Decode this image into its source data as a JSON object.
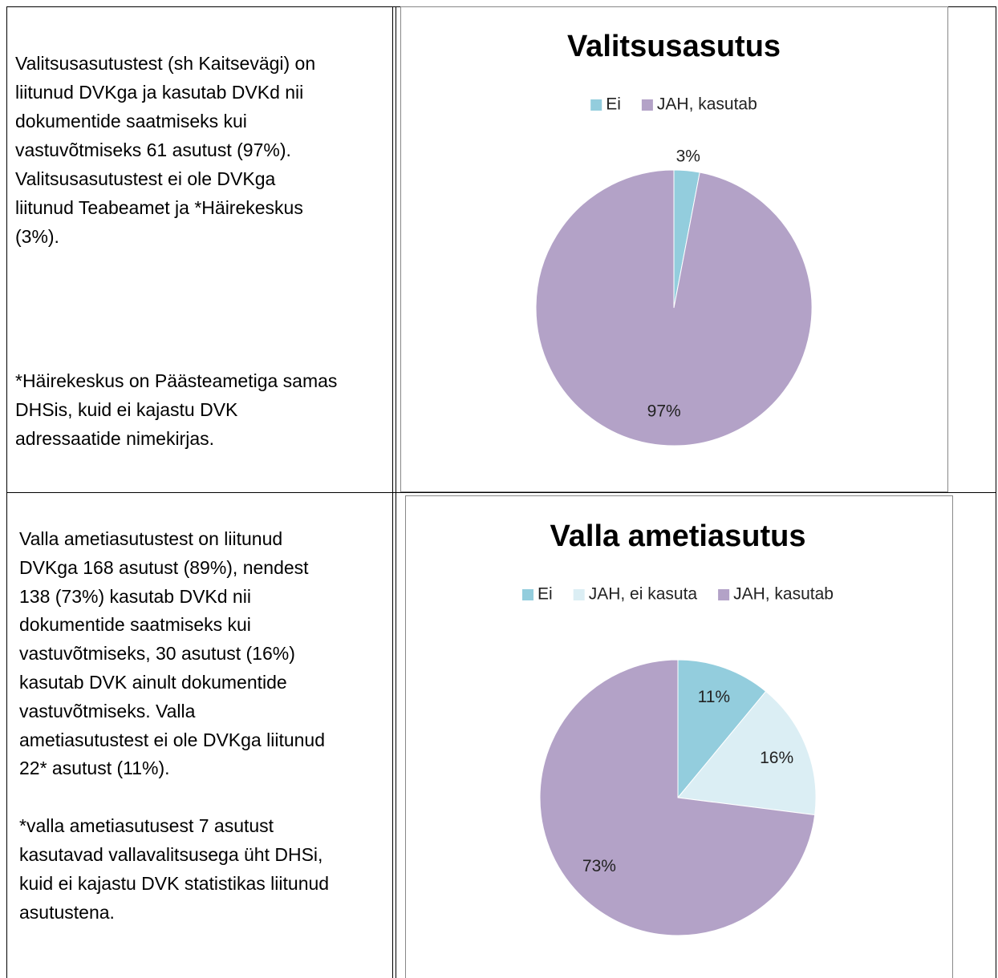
{
  "table": {
    "rows": [
      {
        "text": [
          [
            "Valitsusasutustest (sh Kaitsevägi) on",
            "liitunud DVKga ja kasutab DVKd nii",
            "dokumentide saatmiseks kui",
            "vastuvõtmiseks 61 asutust (97%).",
            "Valitsusasutustest ei ole DVKga",
            "liitunud Teabeamet ja *Häirekeskus",
            "(3%)."
          ],
          [
            "*Häirekeskus on Päästeametiga samas",
            "DHSis, kuid ei kajastu DVK",
            "adressaatide nimekirjas."
          ]
        ]
      },
      {
        "text": [
          [
            "Valla ametiasutustest on liitunud",
            "DVKga 168 asutust (89%), nendest",
            "138 (73%) kasutab DVKd nii",
            "dokumentide saatmiseks kui",
            "vastuvõtmiseks, 30 asutust (16%)",
            "kasutab DVK ainult dokumentide",
            "vastuvõtmiseks. Valla",
            "ametiasutustest ei ole DVKga liitunud",
            "22* asutust (11%)."
          ],
          [
            "*valla ametiasutusest 7 asutust",
            "kasutavad vallavalitsusega üht DHSi,",
            "kuid ei kajastu DVK statistikas liitunud",
            "asutustena."
          ]
        ]
      }
    ]
  },
  "chart_data": [
    {
      "type": "pie",
      "title": "Valitsusasutus",
      "categories": [
        "Ei",
        "JAH, kasutab"
      ],
      "values": [
        3,
        97
      ],
      "value_labels": [
        "3%",
        "97%"
      ],
      "colors": [
        "#93cddd",
        "#b3a2c7"
      ]
    },
    {
      "type": "pie",
      "title": "Valla ametiasutus",
      "categories": [
        "Ei",
        "JAH, ei kasuta",
        "JAH, kasutab"
      ],
      "values": [
        11,
        16,
        73
      ],
      "value_labels": [
        "11%",
        "16%",
        "73%"
      ],
      "colors": [
        "#93cddd",
        "#dbeef4",
        "#b3a2c7"
      ]
    }
  ]
}
